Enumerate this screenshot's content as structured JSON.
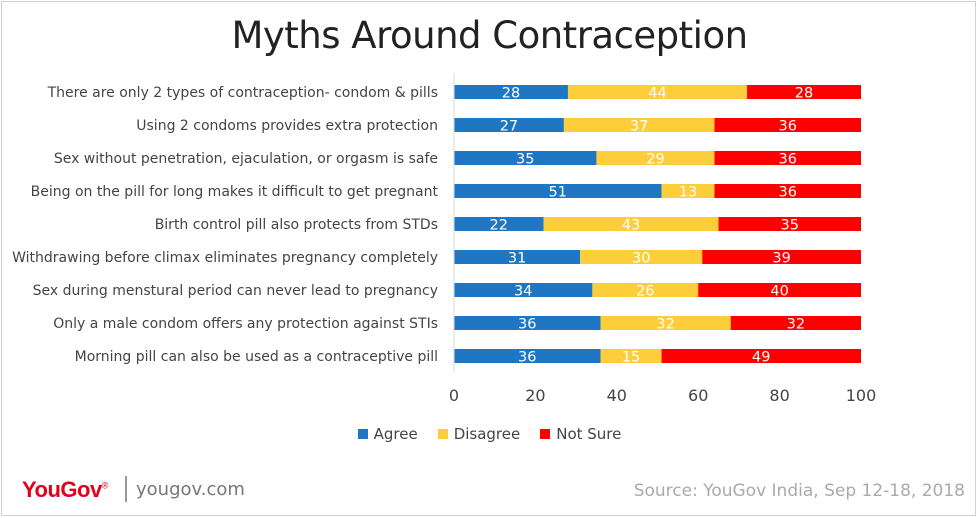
{
  "chart_data": {
    "type": "bar",
    "orientation": "horizontal",
    "stacked": true,
    "title": "Myths Around Contraception",
    "categories": [
      "There are only 2 types of contraception- condom & pills",
      "Using 2 condoms provides extra protection",
      "Sex without penetration, ejaculation, or orgasm is safe",
      "Being on the pill for long makes it difficult to get pregnant",
      "Birth control pill also protects from STDs",
      "Withdrawing before climax eliminates pregnancy completely",
      "Sex during menstural period can never lead to pregnancy",
      "Only a male condom offers any protection against STIs",
      "Morning pill can also be used as a contraceptive pill"
    ],
    "series": [
      {
        "name": "Agree",
        "color": "#1f77c4",
        "values": [
          28,
          27,
          35,
          51,
          22,
          31,
          34,
          36,
          36
        ]
      },
      {
        "name": "Disagree",
        "color": "#fdcd3a",
        "values": [
          44,
          37,
          29,
          13,
          43,
          30,
          26,
          32,
          15
        ]
      },
      {
        "name": "Not Sure",
        "color": "#ff0000",
        "values": [
          28,
          36,
          36,
          36,
          35,
          39,
          40,
          32,
          49
        ]
      }
    ],
    "xlim": [
      0,
      100
    ],
    "xticks": [
      0,
      20,
      40,
      60,
      80,
      100
    ],
    "legend_position": "bottom",
    "grid": false
  },
  "legend": {
    "agree": "Agree",
    "disagree": "Disagree",
    "not_sure": "Not Sure"
  },
  "footer": {
    "logo": "YouGov",
    "logo_mark": "®",
    "site": "yougov.com",
    "source": "Source: YouGov India, Sep 12-18, 2018"
  }
}
